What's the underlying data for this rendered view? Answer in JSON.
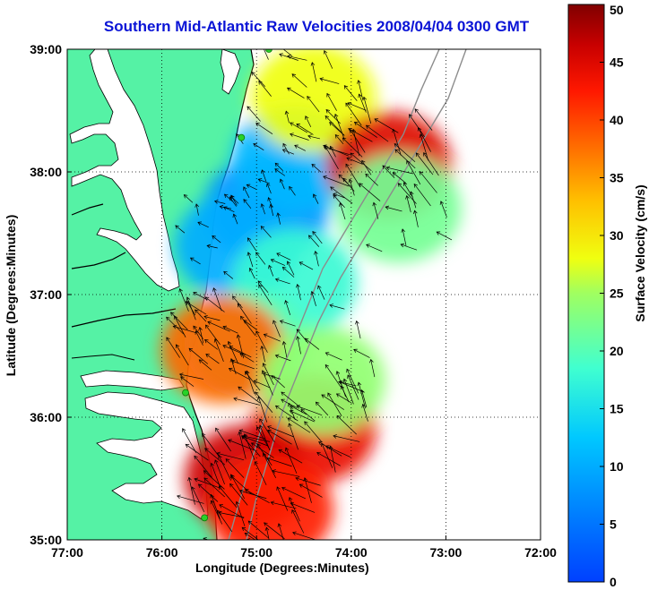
{
  "title": "Southern Mid-Atlantic Raw Velocities 2008/04/04 0300 GMT",
  "x_axis": {
    "label": "Longitude (Degrees:Minutes)",
    "ticks": [
      "77:00",
      "76:00",
      "75:00",
      "74:00",
      "73:00",
      "72:00"
    ]
  },
  "y_axis": {
    "label": "Latitude (Degrees:Minutes)",
    "ticks": [
      "39:00",
      "38:00",
      "37:00",
      "36:00",
      "35:00"
    ]
  },
  "colorbar": {
    "label": "Surface Velocity (cm/s)",
    "ticks": [
      "50",
      "45",
      "40",
      "35",
      "30",
      "25",
      "20",
      "15",
      "10",
      "5",
      "0"
    ],
    "range": [
      0,
      50
    ],
    "colormap": "jet"
  },
  "colors": {
    "title": "#0a14d6",
    "land": "#55f2a5",
    "coastline": "#000000",
    "bathymetry": "#8c8c8c",
    "grid": "#000000",
    "station": "#28d228"
  },
  "chart_data": {
    "type": "heatmap",
    "description_units": "longitude/latitude in degrees (west negative)",
    "xlim": [
      -77,
      -72
    ],
    "ylim": [
      35,
      39
    ],
    "grid": true,
    "legend_position": "right colorbar",
    "speed_regions": [
      {
        "lon": -74.9,
        "lat": 37.7,
        "speed": 8
      },
      {
        "lon": -74.6,
        "lat": 38.1,
        "speed": 11
      },
      {
        "lon": -75.2,
        "lat": 37.4,
        "speed": 10
      },
      {
        "lon": -74.4,
        "lat": 38.6,
        "speed": 28
      },
      {
        "lon": -73.6,
        "lat": 38.05,
        "speed": 45
      },
      {
        "lon": -73.5,
        "lat": 37.7,
        "speed": 22
      },
      {
        "lon": -74.6,
        "lat": 37.1,
        "speed": 18
      },
      {
        "lon": -75.1,
        "lat": 36.6,
        "speed": 20
      },
      {
        "lon": -75.35,
        "lat": 36.55,
        "speed": 38
      },
      {
        "lon": -74.4,
        "lat": 35.9,
        "speed": 44
      },
      {
        "lon": -75.1,
        "lat": 35.5,
        "speed": 46
      },
      {
        "lon": -74.85,
        "lat": 35.25,
        "speed": 42
      },
      {
        "lon": -74.3,
        "lat": 36.3,
        "speed": 24
      }
    ],
    "stations": [
      {
        "lon": -74.87,
        "lat": 39.0
      },
      {
        "lon": -75.16,
        "lat": 38.28
      },
      {
        "lon": -75.75,
        "lat": 36.2
      },
      {
        "lon": -75.55,
        "lat": 35.18
      }
    ]
  }
}
